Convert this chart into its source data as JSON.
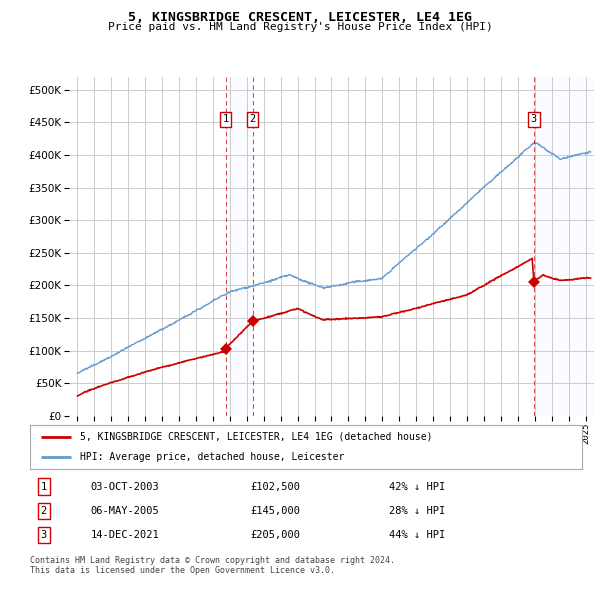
{
  "title": "5, KINGSBRIDGE CRESCENT, LEICESTER, LE4 1EG",
  "subtitle": "Price paid vs. HM Land Registry's House Price Index (HPI)",
  "legend_label_red": "5, KINGSBRIDGE CRESCENT, LEICESTER, LE4 1EG (detached house)",
  "legend_label_blue": "HPI: Average price, detached house, Leicester",
  "transactions": [
    {
      "num": 1,
      "date_str": "03-OCT-2003",
      "year": 2003.75,
      "price": 102500,
      "pct": "42% ↓ HPI"
    },
    {
      "num": 2,
      "date_str": "06-MAY-2005",
      "year": 2005.35,
      "price": 145000,
      "pct": "28% ↓ HPI"
    },
    {
      "num": 3,
      "date_str": "14-DEC-2021",
      "year": 2021.95,
      "price": 205000,
      "pct": "44% ↓ HPI"
    }
  ],
  "footnote1": "Contains HM Land Registry data © Crown copyright and database right 2024.",
  "footnote2": "This data is licensed under the Open Government Licence v3.0.",
  "ylim": [
    0,
    520000
  ],
  "yticks": [
    0,
    50000,
    100000,
    150000,
    200000,
    250000,
    300000,
    350000,
    400000,
    450000,
    500000
  ],
  "xmin": 1994.5,
  "xmax": 2025.5,
  "bg_color": "#ffffff",
  "grid_color": "#cccccc",
  "red_color": "#cc0000",
  "blue_color": "#6699cc",
  "shade_color": "#ddeeff"
}
